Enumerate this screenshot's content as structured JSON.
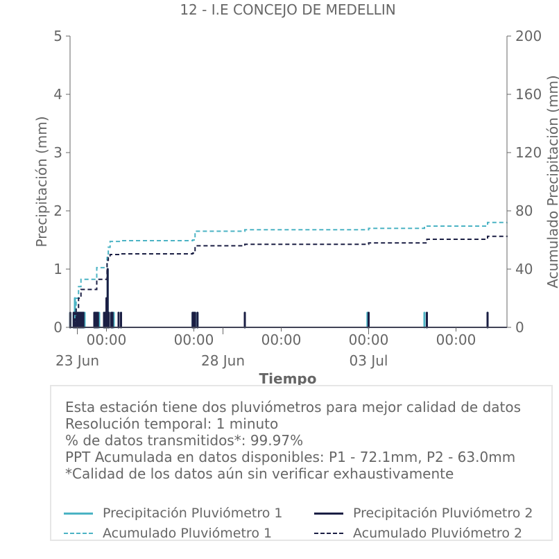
{
  "chart_data": {
    "type": "line",
    "title": "12 - I.E CONCEJO DE MEDELLIN",
    "xlabel": "Tiempo",
    "ylabel": "Precipitación (mm)",
    "y2label": "Acumulado Precipitación (mm)",
    "xlim": [
      "2023-06-22T18:00",
      "2023-07-07T18:00"
    ],
    "ylim": [
      0,
      5
    ],
    "y2lim": [
      0,
      200
    ],
    "yticks": [
      0,
      1,
      2,
      3,
      4,
      5
    ],
    "y2ticks": [
      0,
      40,
      80,
      120,
      160,
      200
    ],
    "xticks_major": [
      {
        "x": "2023-06-24T00:00",
        "label": "00:00"
      },
      {
        "x": "2023-06-27T00:00",
        "label": "00:00"
      },
      {
        "x": "2023-06-30T00:00",
        "label": "00:00"
      },
      {
        "x": "2023-07-03T00:00",
        "label": "00:00"
      },
      {
        "x": "2023-07-06T00:00",
        "label": "00:00"
      }
    ],
    "xticks_date": [
      {
        "x": "2023-06-23T00:00",
        "label": "23 Jun"
      },
      {
        "x": "2023-06-28T00:00",
        "label": "28 Jun"
      },
      {
        "x": "2023-07-03T00:00",
        "label": "03 Jul"
      }
    ],
    "grid": false,
    "series": [
      {
        "name": "Precipitación Pluviómetro 1",
        "axis": "left",
        "style": "solid",
        "color": "#4bb3c4",
        "x": [
          "2023-06-22T18:10",
          "2023-06-22T21:00",
          "2023-06-22T22:00",
          "2023-06-22T23:00",
          "2023-06-23T00:00",
          "2023-06-23T01:00",
          "2023-06-23T02:00",
          "2023-06-23T03:00",
          "2023-06-23T04:00",
          "2023-06-23T05:00",
          "2023-06-23T06:00",
          "2023-06-23T14:00",
          "2023-06-23T15:00",
          "2023-06-23T16:00",
          "2023-06-23T17:00",
          "2023-06-23T18:00",
          "2023-06-23T22:00",
          "2023-06-23T23:00",
          "2023-06-24T00:00",
          "2023-06-24T01:00",
          "2023-06-24T02:00",
          "2023-06-24T04:00",
          "2023-06-24T05:00",
          "2023-06-24T06:00",
          "2023-06-24T10:00",
          "2023-06-24T12:00",
          "2023-06-26T23:00",
          "2023-06-27T00:00",
          "2023-06-27T01:00",
          "2023-06-27T03:00",
          "2023-06-28T18:00",
          "2023-07-02T23:00",
          "2023-07-03T00:00",
          "2023-07-04T22:00",
          "2023-07-05T00:00",
          "2023-07-07T02:00"
        ],
        "values": [
          0.25,
          0.25,
          0.5,
          0.25,
          0.25,
          0.25,
          0.25,
          0.25,
          0.25,
          0.25,
          0.25,
          0.25,
          0.25,
          0.25,
          0.25,
          0.25,
          0.25,
          0.25,
          0.5,
          1.0,
          0.25,
          0.25,
          0.25,
          0.25,
          0.25,
          0.25,
          0.25,
          0.25,
          0.25,
          0.25,
          0.25,
          0.25,
          0.25,
          0.25,
          0.25,
          0.25
        ]
      },
      {
        "name": "Precipitación Pluviómetro 2",
        "axis": "left",
        "style": "solid",
        "color": "#1b1f44",
        "x": [
          "2023-06-22T18:10",
          "2023-06-22T21:00",
          "2023-06-22T22:00",
          "2023-06-22T23:00",
          "2023-06-23T00:00",
          "2023-06-23T01:00",
          "2023-06-23T02:00",
          "2023-06-23T03:00",
          "2023-06-23T04:00",
          "2023-06-23T05:00",
          "2023-06-23T14:00",
          "2023-06-23T15:00",
          "2023-06-23T16:00",
          "2023-06-23T17:00",
          "2023-06-23T22:00",
          "2023-06-23T23:00",
          "2023-06-24T00:00",
          "2023-06-24T01:00",
          "2023-06-24T02:00",
          "2023-06-24T04:00",
          "2023-06-24T05:00",
          "2023-06-24T10:00",
          "2023-06-24T12:00",
          "2023-06-26T23:00",
          "2023-06-27T00:00",
          "2023-06-27T01:00",
          "2023-06-27T03:00",
          "2023-06-28T18:00",
          "2023-07-03T00:00",
          "2023-07-05T00:00",
          "2023-07-07T02:00"
        ],
        "values": [
          0.25,
          0.25,
          0.25,
          0.25,
          0.25,
          0.25,
          0.25,
          0.25,
          0.25,
          0.25,
          0.25,
          0.25,
          0.25,
          0.25,
          0.25,
          0.25,
          0.5,
          1.0,
          0.25,
          0.25,
          0.25,
          0.25,
          0.25,
          0.25,
          0.25,
          0.25,
          0.25,
          0.25,
          0.25,
          0.25,
          0.25
        ]
      },
      {
        "name": "Acumulado Pluviómetro 1",
        "axis": "right",
        "style": "dashed",
        "color": "#4bb3c4",
        "x": [
          "2023-06-22T18:00",
          "2023-06-22T22:00",
          "2023-06-22T23:00",
          "2023-06-23T01:00",
          "2023-06-23T03:00",
          "2023-06-23T14:00",
          "2023-06-23T16:00",
          "2023-06-23T23:00",
          "2023-06-24T00:30",
          "2023-06-24T01:30",
          "2023-06-24T03:00",
          "2023-06-24T12:00",
          "2023-06-26T23:00",
          "2023-06-27T01:00",
          "2023-06-28T18:00",
          "2023-07-03T00:00",
          "2023-07-04T22:00",
          "2023-07-07T02:00",
          "2023-07-07T18:00"
        ],
        "values": [
          0,
          8,
          20,
          28,
          33,
          33,
          41,
          41,
          48,
          55,
          59,
          59.5,
          60,
          66,
          67,
          68,
          69.5,
          72,
          72.1
        ]
      },
      {
        "name": "Acumulado Pluviómetro 2",
        "axis": "right",
        "style": "dashed",
        "color": "#1b1f44",
        "x": [
          "2023-06-22T18:00",
          "2023-06-22T22:00",
          "2023-06-22T23:00",
          "2023-06-23T01:00",
          "2023-06-23T03:00",
          "2023-06-23T14:00",
          "2023-06-23T16:00",
          "2023-06-23T23:00",
          "2023-06-24T00:30",
          "2023-06-24T01:30",
          "2023-06-24T03:00",
          "2023-06-24T12:00",
          "2023-06-26T23:00",
          "2023-06-27T01:00",
          "2023-06-28T18:00",
          "2023-07-03T00:00",
          "2023-07-05T00:00",
          "2023-07-07T02:00",
          "2023-07-07T18:00"
        ],
        "values": [
          0,
          4,
          13,
          20,
          26,
          26,
          33,
          33,
          46,
          48,
          50,
          50.5,
          51,
          56,
          57,
          58,
          60.5,
          62.5,
          63.0
        ]
      }
    ],
    "legend_placement": "bottom",
    "legend": [
      {
        "label": "Precipitación Pluviómetro 1",
        "color": "#4bb3c4",
        "style": "solid"
      },
      {
        "label": "Precipitación Pluviómetro 2",
        "color": "#1b1f44",
        "style": "solid"
      },
      {
        "label": "Acumulado Pluviómetro 1",
        "color": "#4bb3c4",
        "style": "dashed"
      },
      {
        "label": "Acumulado Pluviómetro 2",
        "color": "#1b1f44",
        "style": "dashed"
      }
    ]
  },
  "info": {
    "lines": [
      "Esta estación tiene dos pluviómetros para mejor calidad de datos",
      "Resolución temporal: 1 minuto",
      "% de datos transmitidos*: 99.97%",
      "PPT Acumulada en datos disponibles: P1 - 72.1mm, P2 - 63.0mm",
      "*Calidad de los datos aún sin verificar exhaustivamente"
    ]
  }
}
